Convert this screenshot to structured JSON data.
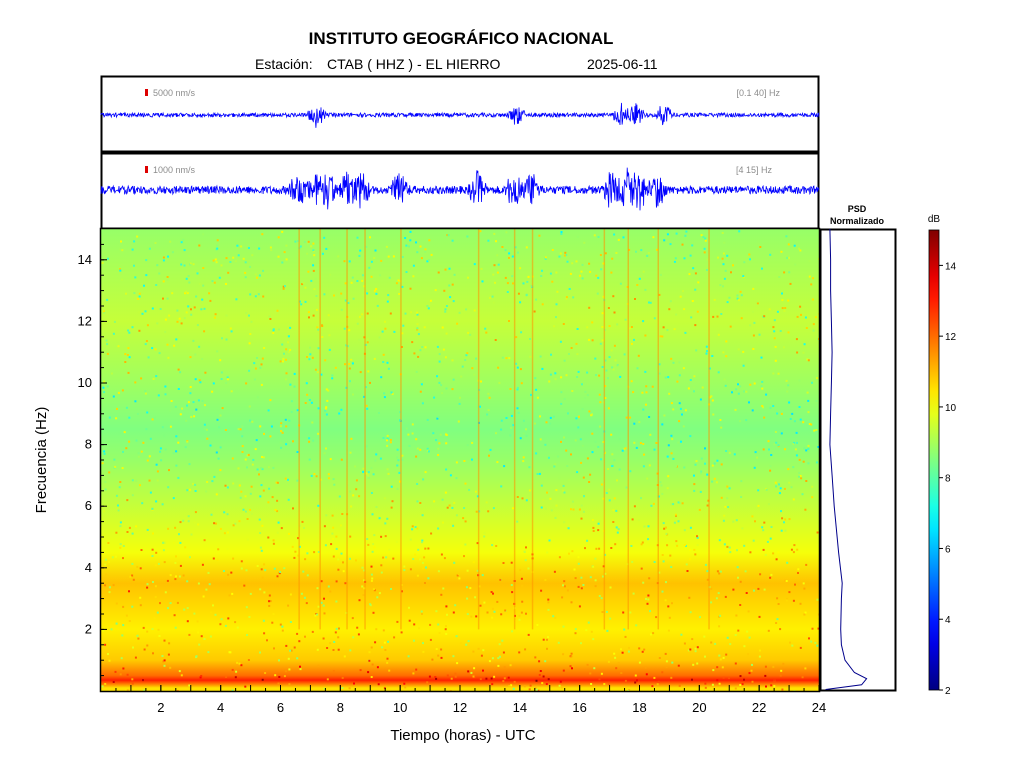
{
  "header": {
    "title": "INSTITUTO GEOGRÁFICO NACIONAL",
    "station_label": "Estación:",
    "station": "CTAB ( HHZ ) - EL HIERRO",
    "date": "2025-06-11"
  },
  "colors": {
    "trace": "#0000ff",
    "scale_bar": "#dd0000",
    "annotation": "#8c8c8c",
    "psd_line": "#00008b"
  },
  "chart_data": [
    {
      "type": "line",
      "panel": "seismogram-top",
      "scale_label": "5000 nm/s",
      "filter_label": "[0.1 40] Hz",
      "xlim": [
        0,
        24
      ],
      "events_hours": [
        7.2,
        13.9,
        17.4,
        17.9,
        18.8
      ]
    },
    {
      "type": "line",
      "panel": "seismogram-bottom",
      "scale_label": "1000 nm/s",
      "filter_label": "[4 15] Hz",
      "xlim": [
        0,
        24
      ],
      "events_hours": [
        6.6,
        7.2,
        7.6,
        8.2,
        8.7,
        10.0,
        12.6,
        13.8,
        14.4,
        17.1,
        17.6,
        18.0,
        18.6
      ]
    },
    {
      "type": "heatmap",
      "panel": "spectrogram",
      "xlabel": "Tiempo (horas) - UTC",
      "ylabel": "Frecuencia  (Hz)",
      "xlim": [
        0,
        24
      ],
      "ylim": [
        0,
        15
      ],
      "xticks": [
        2,
        4,
        6,
        8,
        10,
        12,
        14,
        16,
        18,
        20,
        22,
        24
      ],
      "yticks": [
        2,
        4,
        6,
        8,
        10,
        12,
        14
      ],
      "colorscale": "jet",
      "level_profile_db": [
        {
          "freq": 0.1,
          "db": 10.5
        },
        {
          "freq": 0.35,
          "db": 13.0
        },
        {
          "freq": 0.5,
          "db": 12.0
        },
        {
          "freq": 1.0,
          "db": 10.8
        },
        {
          "freq": 2.0,
          "db": 10.3
        },
        {
          "freq": 3.0,
          "db": 10.7
        },
        {
          "freq": 3.5,
          "db": 10.9
        },
        {
          "freq": 4.5,
          "db": 10.0
        },
        {
          "freq": 6.0,
          "db": 9.4
        },
        {
          "freq": 7.5,
          "db": 8.8
        },
        {
          "freq": 8.5,
          "db": 8.5
        },
        {
          "freq": 10.0,
          "db": 8.9
        },
        {
          "freq": 12.0,
          "db": 9.4
        },
        {
          "freq": 14.0,
          "db": 9.0
        },
        {
          "freq": 15.0,
          "db": 8.8
        }
      ],
      "vertical_streaks_hours": [
        6.6,
        7.3,
        8.2,
        8.8,
        10.0,
        12.6,
        13.8,
        14.4,
        16.8,
        17.6,
        18.6,
        20.3
      ]
    },
    {
      "type": "line",
      "panel": "psd",
      "title": "PSD Normalizado",
      "ylim": [
        0,
        15
      ],
      "points": [
        {
          "freq": 0.05,
          "psd": 0.05
        },
        {
          "freq": 0.2,
          "psd": 0.55
        },
        {
          "freq": 0.4,
          "psd": 0.62
        },
        {
          "freq": 0.6,
          "psd": 0.45
        },
        {
          "freq": 1.0,
          "psd": 0.32
        },
        {
          "freq": 1.5,
          "psd": 0.27
        },
        {
          "freq": 2.0,
          "psd": 0.26
        },
        {
          "freq": 3.0,
          "psd": 0.27
        },
        {
          "freq": 3.5,
          "psd": 0.28
        },
        {
          "freq": 4.5,
          "psd": 0.23
        },
        {
          "freq": 6.0,
          "psd": 0.17
        },
        {
          "freq": 7.0,
          "psd": 0.14
        },
        {
          "freq": 8.0,
          "psd": 0.11
        },
        {
          "freq": 9.0,
          "psd": 0.12
        },
        {
          "freq": 10.0,
          "psd": 0.13
        },
        {
          "freq": 11.0,
          "psd": 0.14
        },
        {
          "freq": 12.0,
          "psd": 0.13
        },
        {
          "freq": 13.0,
          "psd": 0.12
        },
        {
          "freq": 14.0,
          "psd": 0.12
        },
        {
          "freq": 15.0,
          "psd": 0.11
        }
      ]
    },
    {
      "type": "heatmap",
      "panel": "colorbar",
      "label": "dB",
      "range": [
        2,
        15
      ],
      "ticks": [
        2,
        4,
        6,
        8,
        10,
        12,
        14
      ]
    }
  ]
}
